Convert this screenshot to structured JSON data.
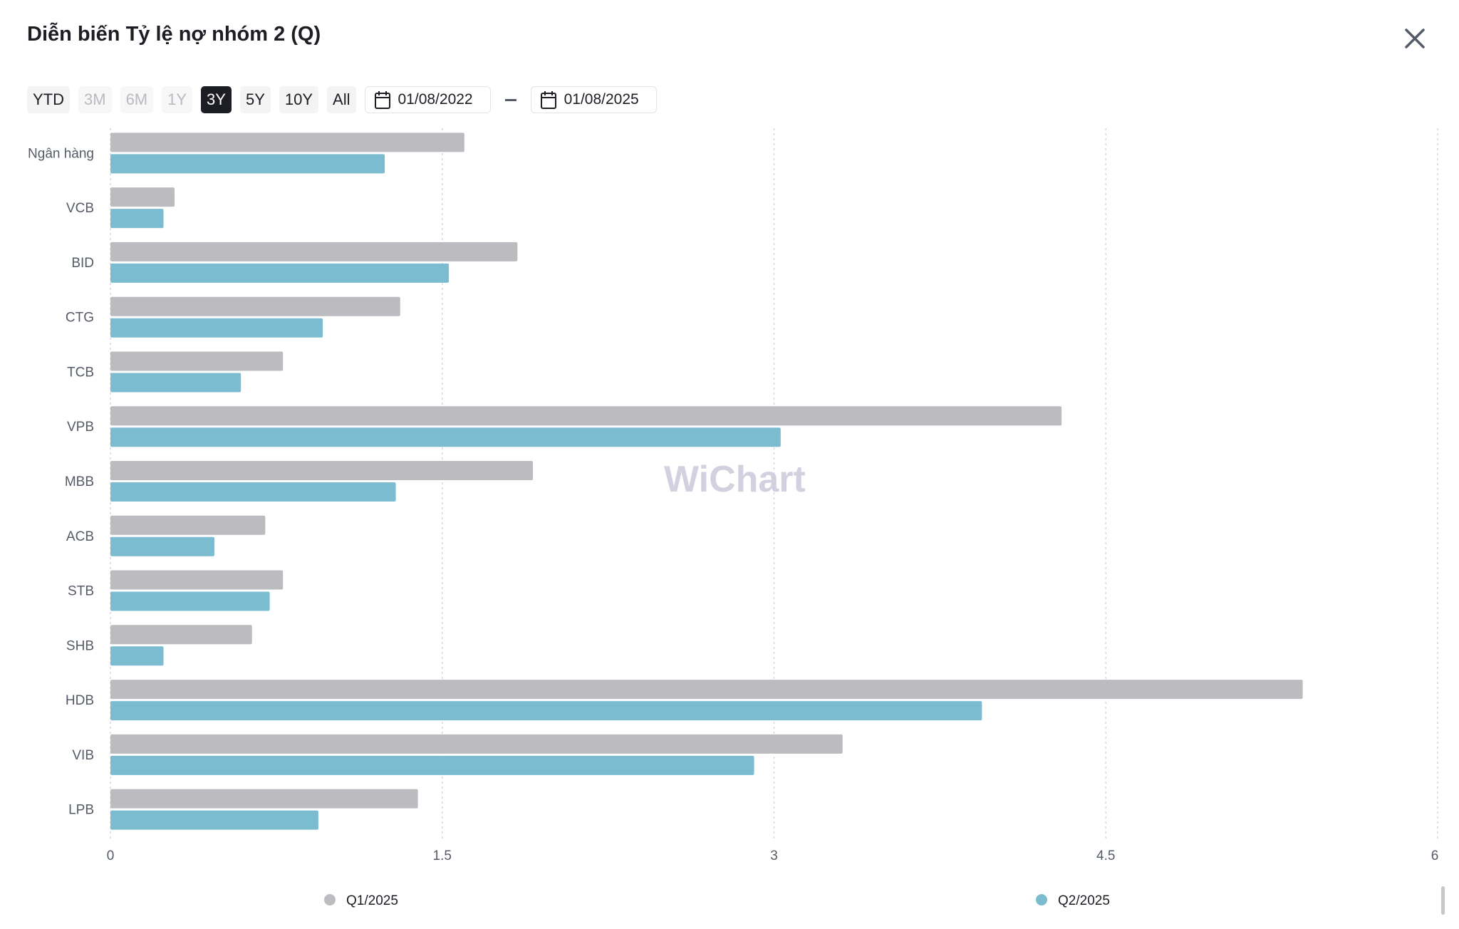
{
  "title": "Diễn biến Tỷ lệ nợ nhóm 2 (Q)",
  "ranges": [
    {
      "label": "YTD",
      "state": "normal"
    },
    {
      "label": "3M",
      "state": "disabled"
    },
    {
      "label": "6M",
      "state": "disabled"
    },
    {
      "label": "1Y",
      "state": "disabled"
    },
    {
      "label": "3Y",
      "state": "active"
    },
    {
      "label": "5Y",
      "state": "normal"
    },
    {
      "label": "10Y",
      "state": "normal"
    },
    {
      "label": "All",
      "state": "normal"
    }
  ],
  "date_from": "01/08/2022",
  "date_to": "01/08/2025",
  "watermark": "WiChart",
  "chart_data": {
    "type": "bar",
    "orientation": "horizontal",
    "title": "Diễn biến Tỷ lệ nợ nhóm 2 (Q)",
    "categories": [
      "Ngân hàng",
      "VCB",
      "BID",
      "CTG",
      "TCB",
      "VPB",
      "MBB",
      "ACB",
      "STB",
      "SHB",
      "HDB",
      "VIB",
      "LPB"
    ],
    "series": [
      {
        "name": "Q1/2025",
        "color": "#bcbbc0",
        "values": [
          1.6,
          0.29,
          1.84,
          1.31,
          0.78,
          4.3,
          1.91,
          0.7,
          0.78,
          0.64,
          5.39,
          3.31,
          1.39
        ]
      },
      {
        "name": "Q2/2025",
        "color": "#7bbcd0",
        "values": [
          1.24,
          0.24,
          1.53,
          0.96,
          0.59,
          3.03,
          1.29,
          0.47,
          0.72,
          0.24,
          3.94,
          2.91,
          0.94
        ]
      }
    ],
    "xlim": [
      0,
      6
    ],
    "xticks": [
      "0",
      "1.5",
      "3",
      "4.5",
      "6"
    ],
    "xtick_values": [
      0,
      1.5,
      3,
      4.5,
      6
    ],
    "grid": true,
    "legend_position": "bottom"
  }
}
